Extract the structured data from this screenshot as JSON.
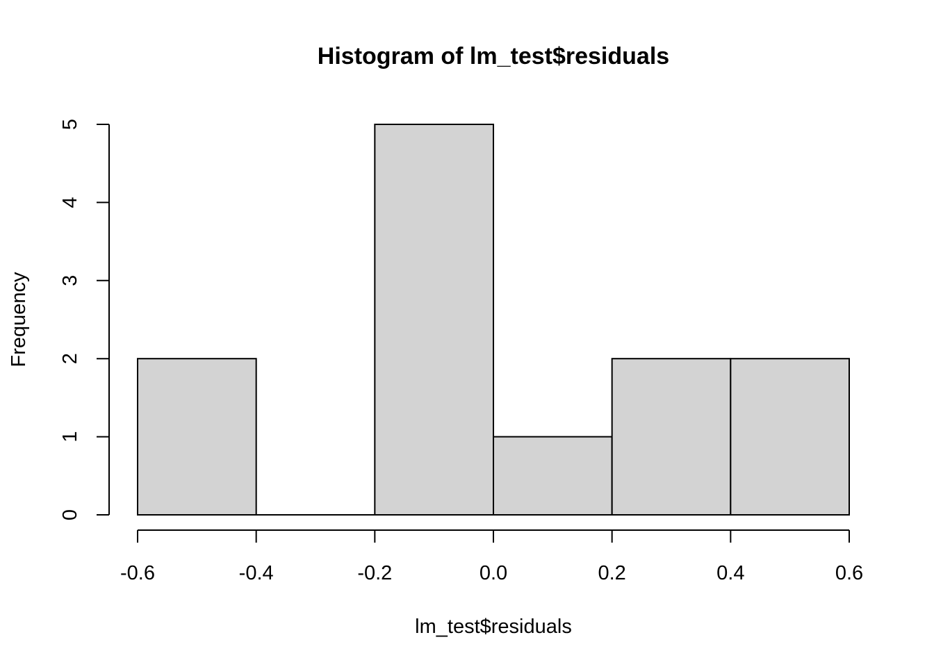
{
  "chart_data": {
    "type": "bar",
    "subtype": "histogram",
    "title": "Histogram of lm_test$residuals",
    "xlabel": "lm_test$residuals",
    "ylabel": "Frequency",
    "bin_edges": [
      -0.6,
      -0.4,
      -0.2,
      0.0,
      0.2,
      0.4,
      0.6
    ],
    "values": [
      2,
      0,
      5,
      1,
      2,
      2
    ],
    "xlim": [
      -0.6,
      0.6
    ],
    "ylim": [
      0,
      5
    ],
    "x_ticks": [
      -0.6,
      -0.4,
      -0.2,
      0.0,
      0.2,
      0.4,
      0.6
    ],
    "x_tick_labels": [
      "-0.6",
      "-0.4",
      "-0.2",
      "0.0",
      "0.2",
      "0.4",
      "0.6"
    ],
    "y_ticks": [
      0,
      1,
      2,
      3,
      4,
      5
    ],
    "y_tick_labels": [
      "0",
      "1",
      "2",
      "3",
      "4",
      "5"
    ],
    "bar_color": "#d3d3d3",
    "edge_color": "#000000",
    "grid": false,
    "legend": "none"
  }
}
